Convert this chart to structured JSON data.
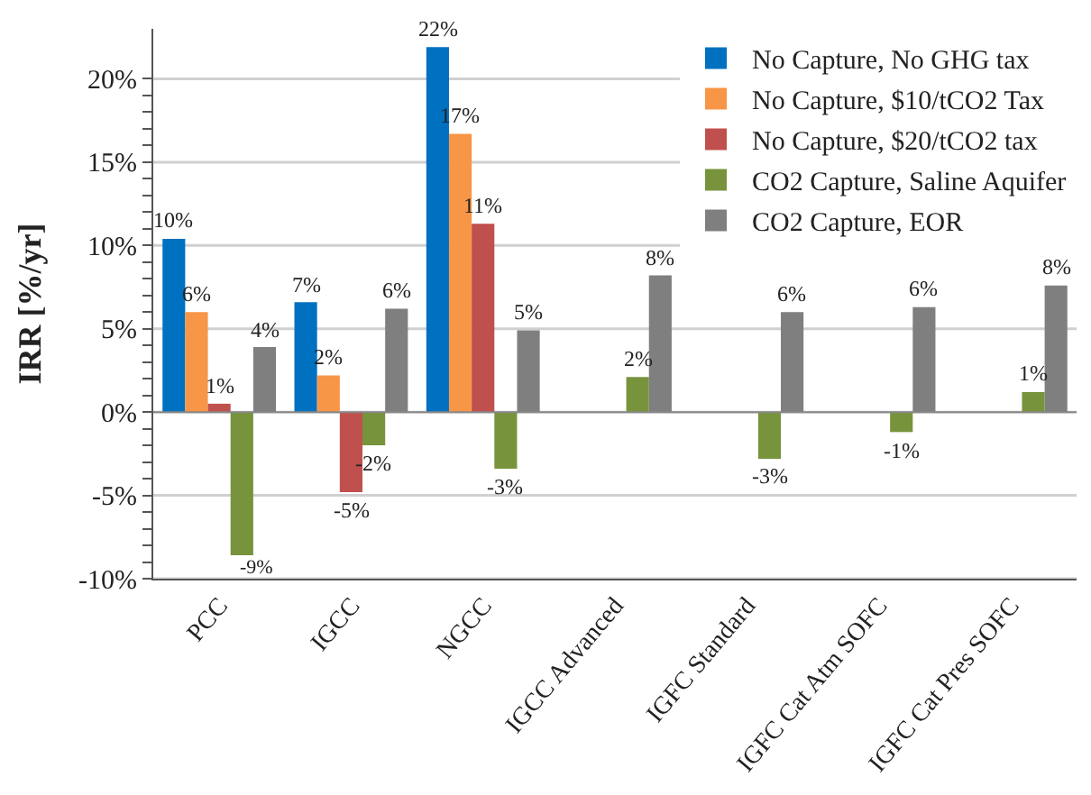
{
  "chart_data": {
    "type": "bar",
    "ylabel": "IRR [%/yr]",
    "categories": [
      "PCC",
      "IGCC",
      "NGCC",
      "IGCC Advanced",
      "IGFC Standard",
      "IGFC Cat Atm SOFC",
      "IGFC Cat Pres SOFC"
    ],
    "series": [
      {
        "name": "No Capture, No GHG tax",
        "color": "#0070c0",
        "values": [
          10.4,
          6.6,
          21.9,
          null,
          null,
          null,
          null
        ],
        "value_labels": [
          "10%",
          "7%",
          "22%",
          null,
          null,
          null,
          null
        ]
      },
      {
        "name": "No Capture, $10/tCO2 Tax",
        "color": "#f79646",
        "values": [
          6.0,
          2.2,
          16.7,
          null,
          null,
          null,
          null
        ],
        "value_labels": [
          "6%",
          "2%",
          "17%",
          null,
          null,
          null,
          null
        ]
      },
      {
        "name": "No Capture, $20/tCO2 tax",
        "color": "#c0504d",
        "values": [
          0.5,
          -4.8,
          11.3,
          null,
          null,
          null,
          null
        ],
        "value_labels": [
          "1%",
          "-5%",
          "11%",
          null,
          null,
          null,
          null
        ]
      },
      {
        "name": "CO2 Capture, Saline Aquifer",
        "color": "#77933c",
        "values": [
          -8.6,
          -2.0,
          -3.4,
          2.1,
          -2.8,
          -1.2,
          1.2
        ],
        "value_labels": [
          "-9%",
          "-2%",
          "-3%",
          "2%",
          "-3%",
          "-1%",
          "1%"
        ]
      },
      {
        "name": "CO2 Capture, EOR",
        "color": "#7f7f7f",
        "values": [
          3.9,
          6.2,
          4.9,
          8.2,
          6.0,
          6.3,
          7.6
        ],
        "value_labels": [
          "4%",
          "6%",
          "5%",
          "8%",
          "6%",
          "6%",
          "8%"
        ]
      }
    ],
    "ylim": [
      -10,
      23
    ],
    "yticks": [
      {
        "value": -10,
        "label": "-10%"
      },
      {
        "value": -9,
        "label": null
      },
      {
        "value": -8,
        "label": null
      },
      {
        "value": -7,
        "label": null
      },
      {
        "value": -6,
        "label": null
      },
      {
        "value": -5,
        "label": "-5%"
      },
      {
        "value": -4,
        "label": null
      },
      {
        "value": -3,
        "label": null
      },
      {
        "value": -2,
        "label": null
      },
      {
        "value": -1,
        "label": null
      },
      {
        "value": 0,
        "label": "0%"
      },
      {
        "value": 1,
        "label": null
      },
      {
        "value": 2,
        "label": null
      },
      {
        "value": 3,
        "label": null
      },
      {
        "value": 4,
        "label": null
      },
      {
        "value": 5,
        "label": "5%"
      },
      {
        "value": 6,
        "label": null
      },
      {
        "value": 7,
        "label": null
      },
      {
        "value": 8,
        "label": null
      },
      {
        "value": 9,
        "label": null
      },
      {
        "value": 10,
        "label": "10%"
      },
      {
        "value": 11,
        "label": null
      },
      {
        "value": 12,
        "label": null
      },
      {
        "value": 13,
        "label": null
      },
      {
        "value": 14,
        "label": null
      },
      {
        "value": 15,
        "label": "15%"
      },
      {
        "value": 16,
        "label": null
      },
      {
        "value": 17,
        "label": null
      },
      {
        "value": 18,
        "label": null
      },
      {
        "value": 19,
        "label": null
      },
      {
        "value": 20,
        "label": "20%"
      }
    ],
    "grid": "y",
    "legend": "top right"
  }
}
